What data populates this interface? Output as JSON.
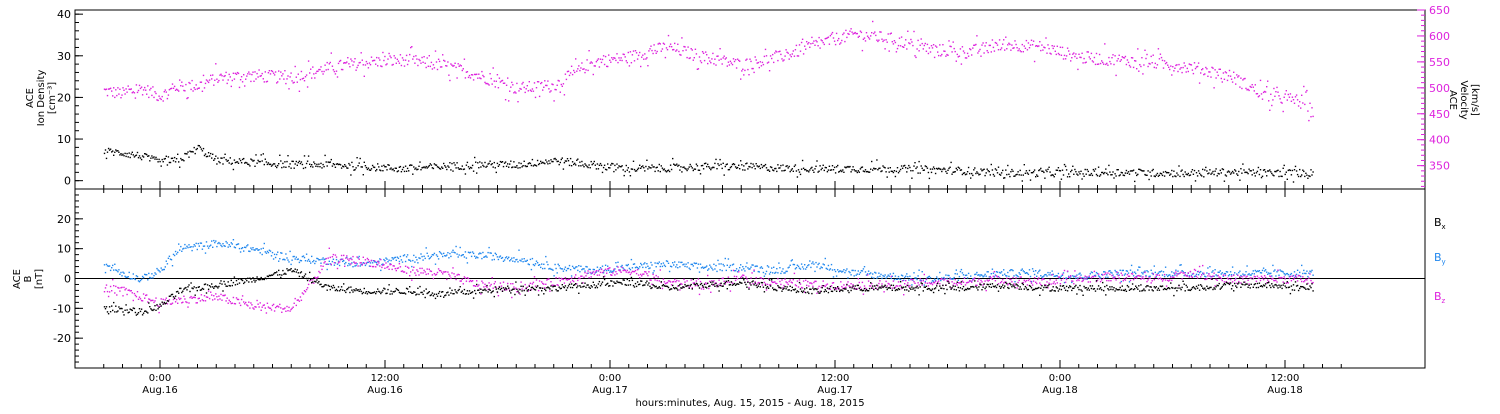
{
  "chart_data": [
    {
      "type": "scatter",
      "panel": "top",
      "ylabel_left": [
        "ACE",
        "Ion Density",
        "[cm⁻³]"
      ],
      "ylabel_right": [
        "ACE",
        "Velocity",
        "[km/s]"
      ],
      "ylim_left": [
        -2,
        41
      ],
      "ylim_right": [
        305,
        650
      ],
      "left_ticks": [
        "0",
        "10",
        "20",
        "30",
        "40"
      ],
      "right_ticks": [
        "350",
        "400",
        "450",
        "500",
        "550",
        "600",
        "650"
      ],
      "series": [
        {
          "name": "Ion Density",
          "axis": "left",
          "color": "#000000",
          "x_hours": [
            -3,
            -2,
            -1,
            0,
            1,
            2,
            3,
            5,
            7,
            9,
            11,
            13,
            15,
            17,
            19,
            21,
            23,
            25,
            27,
            29,
            31,
            33,
            35,
            37,
            39,
            41,
            43,
            45,
            47,
            49,
            51,
            53,
            55,
            57,
            59,
            61,
            61.5
          ],
          "values": [
            7.2,
            6.8,
            6,
            4.5,
            5,
            8,
            5,
            4.5,
            4,
            4,
            3.5,
            3,
            3.5,
            4,
            4,
            5,
            4,
            3,
            3.2,
            3.5,
            3.5,
            3.2,
            3,
            3,
            3,
            2.8,
            2.5,
            2,
            2,
            2,
            2.2,
            2,
            2,
            2.2,
            2,
            2,
            2
          ]
        },
        {
          "name": "Velocity",
          "axis": "right",
          "color": "#dd22dd",
          "x_hours": [
            -3,
            -2,
            -1,
            0,
            1,
            2,
            3,
            5,
            7,
            9,
            11,
            13,
            15,
            17,
            19,
            21,
            23,
            25,
            27,
            29,
            31,
            33,
            35,
            37,
            39,
            41,
            43,
            45,
            47,
            49,
            51,
            53,
            55,
            57,
            59,
            61,
            61.5
          ],
          "values": [
            495,
            490,
            500,
            485,
            505,
            505,
            520,
            525,
            520,
            540,
            550,
            555,
            545,
            525,
            500,
            505,
            550,
            560,
            580,
            560,
            545,
            560,
            585,
            605,
            595,
            575,
            570,
            585,
            580,
            560,
            555,
            550,
            540,
            525,
            485,
            475,
            450
          ]
        }
      ]
    },
    {
      "type": "scatter",
      "panel": "bottom",
      "ylabel_left": [
        "ACE",
        "B",
        "[nT]"
      ],
      "ylim": [
        -30,
        30
      ],
      "left_ticks": [
        "-20",
        "-10",
        "0",
        "10",
        "20"
      ],
      "legend": [
        "Bx",
        "By",
        "Bz"
      ],
      "series": [
        {
          "name": "Bx",
          "color": "#000000",
          "x_hours": [
            -3,
            -2,
            -1,
            0,
            1,
            3,
            5,
            7,
            9,
            11,
            13,
            15,
            17,
            19,
            21,
            23,
            25,
            27,
            29,
            31,
            33,
            35,
            37,
            39,
            41,
            43,
            45,
            47,
            49,
            51,
            53,
            55,
            57,
            59,
            61,
            61.5
          ],
          "values": [
            -10,
            -10,
            -11,
            -9,
            -4,
            -2,
            0,
            3,
            -3,
            -4,
            -4,
            -5,
            -4,
            -3,
            -3,
            -2,
            -1,
            -3,
            -2,
            -1,
            -3,
            -4,
            -3,
            -3,
            -3,
            -3,
            -2,
            -3,
            -3,
            -3,
            -3,
            -3,
            -2,
            -2,
            -3,
            -3
          ]
        },
        {
          "name": "By",
          "color": "#2288ee",
          "x_hours": [
            -3,
            -2,
            -1,
            0,
            1,
            3,
            5,
            7,
            9,
            11,
            13,
            15,
            17,
            19,
            21,
            23,
            25,
            27,
            29,
            31,
            33,
            35,
            37,
            39,
            41,
            43,
            45,
            47,
            49,
            51,
            53,
            55,
            57,
            59,
            61,
            61.5
          ],
          "values": [
            5,
            2,
            0,
            3,
            10,
            12,
            10,
            7,
            6,
            5,
            7,
            8,
            8,
            7,
            4,
            3,
            4,
            5,
            4,
            4,
            3,
            5,
            2,
            1,
            0,
            1,
            2,
            2,
            1,
            2,
            2,
            2,
            2,
            2,
            2,
            2
          ]
        },
        {
          "name": "Bz",
          "color": "#dd22dd",
          "x_hours": [
            -3,
            -2,
            -1,
            0,
            1,
            3,
            5,
            7,
            9,
            11,
            13,
            15,
            17,
            19,
            21,
            23,
            25,
            27,
            29,
            31,
            33,
            35,
            37,
            39,
            41,
            43,
            45,
            47,
            49,
            51,
            53,
            55,
            57,
            59,
            61,
            61.5
          ],
          "values": [
            -3,
            -4,
            -6,
            -8,
            -7,
            -6,
            -9,
            -10,
            7,
            6,
            3,
            2,
            -2,
            -3,
            -1,
            2,
            3,
            -1,
            -2,
            0,
            -1,
            -2,
            -2,
            -2,
            -1,
            -1,
            0,
            -1,
            0,
            1,
            0,
            2,
            0,
            0,
            0,
            -1
          ]
        }
      ]
    }
  ],
  "x_axis": {
    "tick_labels": [
      {
        "time": "0:00",
        "day": "Aug.16"
      },
      {
        "time": "12:00",
        "day": "Aug.16"
      },
      {
        "time": "0:00",
        "day": "Aug.17"
      },
      {
        "time": "12:00",
        "day": "Aug.17"
      },
      {
        "time": "0:00",
        "day": "Aug.18"
      },
      {
        "time": "12:00",
        "day": "Aug.18"
      }
    ],
    "title": "hours:minutes, Aug. 15, 2015 - Aug. 18, 2015"
  }
}
